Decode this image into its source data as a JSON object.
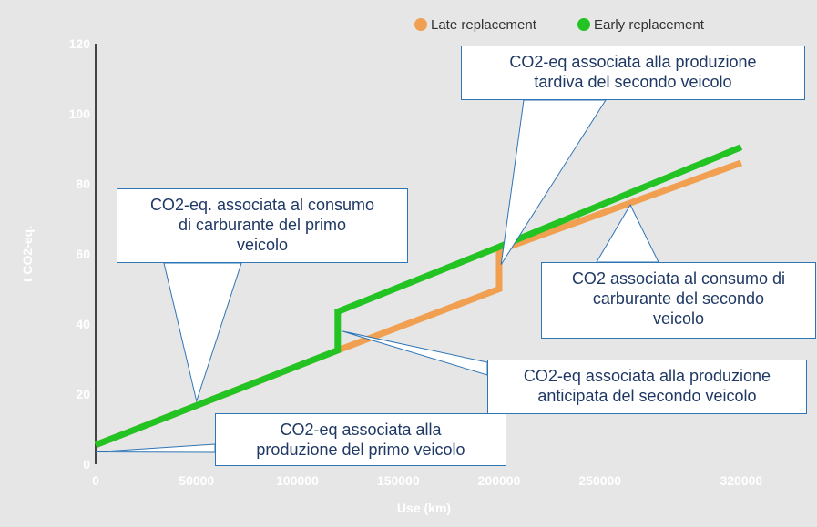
{
  "chart_data": {
    "type": "line",
    "xlabel": "Use (km)",
    "ylabel": "t CO2-eq.",
    "xlim": [
      0,
      330000
    ],
    "ylim": [
      0,
      120
    ],
    "x_ticks": [
      0,
      50000,
      100000,
      150000,
      200000,
      250000,
      320000
    ],
    "y_ticks": [
      0,
      20,
      40,
      60,
      80,
      100,
      120
    ],
    "grid": false,
    "legend_position": "top-right",
    "series": [
      {
        "name": "Late replacement",
        "color": "#f0a050",
        "points": [
          [
            0,
            5.5
          ],
          [
            120000,
            32.5
          ],
          [
            200000,
            50
          ],
          [
            200000,
            61
          ],
          [
            320000,
            86
          ]
        ]
      },
      {
        "name": "Early replacement",
        "color": "#22c322",
        "points": [
          [
            0,
            5.5
          ],
          [
            120000,
            32.5
          ],
          [
            120000,
            43.5
          ],
          [
            200000,
            62
          ],
          [
            320000,
            90.5
          ]
        ]
      }
    ],
    "annotations": [
      {
        "id": "prod-first",
        "text": "CO2-eq associata alla\nproduzione del primo veicolo",
        "target": [
          0,
          3.5
        ]
      },
      {
        "id": "fuel-first",
        "text": "CO2-eq. associata al consumo\ndi carburante del primo\nveicolo",
        "target": [
          50000,
          18
        ]
      },
      {
        "id": "prod-late",
        "text": "CO2-eq associata alla produzione\ntardiva del secondo veicolo",
        "target": [
          201000,
          57
        ]
      },
      {
        "id": "fuel-second",
        "text": "CO2 associata al consumo di\ncarburante del secondo\nveicolo",
        "target": [
          265000,
          74
        ]
      },
      {
        "id": "prod-early",
        "text": "CO2-eq associata alla produzione\nanticipata del secondo veicolo",
        "target": [
          122000,
          38
        ]
      }
    ]
  }
}
